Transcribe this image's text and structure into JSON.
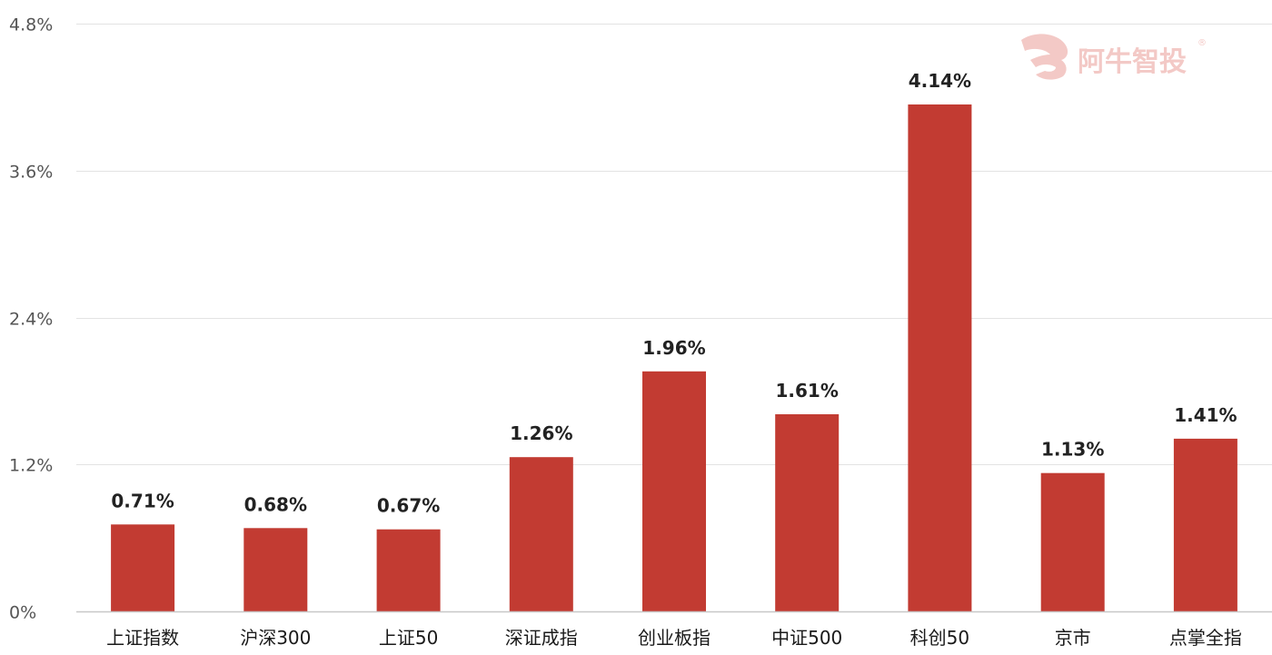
{
  "watermark": {
    "text": "阿牛智投",
    "mark": "®",
    "color": "#f3c9c6"
  },
  "colors": {
    "bar": "#c23b32",
    "grid": "#e3e3e3",
    "axis": "#c8c8c8"
  },
  "chart_data": {
    "type": "bar",
    "title": "",
    "xlabel": "",
    "ylabel": "",
    "ylim": [
      0,
      4.8
    ],
    "yticks": [
      0,
      1.2,
      2.4,
      3.6,
      4.8
    ],
    "ytick_labels": [
      "0%",
      "1.2%",
      "2.4%",
      "3.6%",
      "4.8%"
    ],
    "grid": true,
    "legend": false,
    "categories": [
      "上证指数",
      "沪深300",
      "上证50",
      "深证成指",
      "创业板指",
      "中证500",
      "科创50",
      "京市",
      "点掌全指"
    ],
    "values": [
      0.71,
      0.68,
      0.67,
      1.26,
      1.96,
      1.61,
      4.14,
      1.13,
      1.41
    ],
    "value_labels": [
      "0.71%",
      "0.68%",
      "0.67%",
      "1.26%",
      "1.96%",
      "1.61%",
      "4.14%",
      "1.13%",
      "1.41%"
    ]
  }
}
